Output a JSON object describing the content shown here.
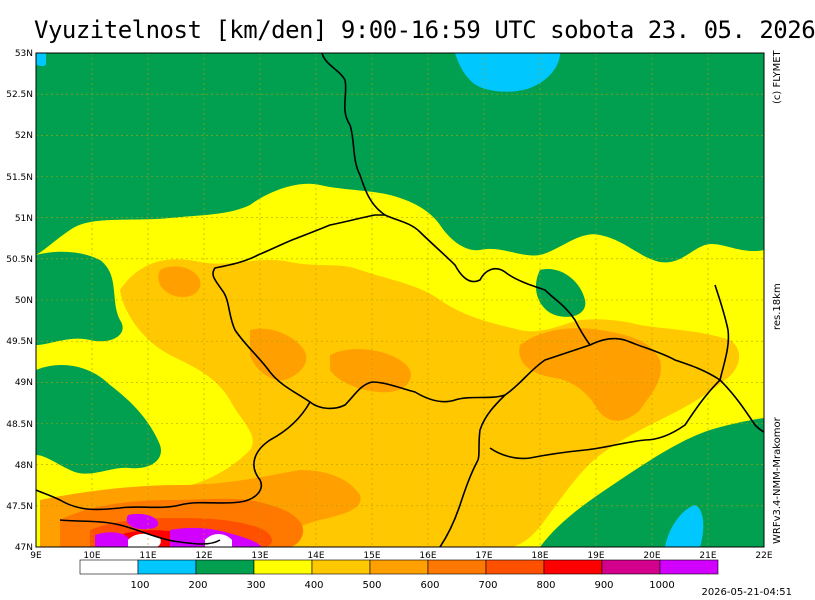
{
  "header": {
    "title": "Vyuzitelnost [km/den] 9:00-16:59 UTC  sobota 23. 05. 2026"
  },
  "side": {
    "copyright": "(c) FLYMET",
    "resolution": "res.18km",
    "model": "WRFv3.4-NMM-Mrakomor"
  },
  "footer": {
    "timestamp": "2026-05-21-04:51"
  },
  "axes": {
    "lat_labels": [
      "53N",
      "52.5N",
      "52N",
      "51.5N",
      "51N",
      "50.5N",
      "50N",
      "49.5N",
      "49N",
      "48.5N",
      "48N",
      "47.5N",
      "47N"
    ],
    "lon_labels": [
      "9E",
      "10E",
      "11E",
      "12E",
      "13E",
      "14E",
      "15E",
      "16E",
      "17E",
      "18E",
      "19E",
      "20E",
      "21E",
      "22E"
    ]
  },
  "legend": {
    "colors": [
      "#ffffff",
      "#00c8ff",
      "#00a050",
      "#ffff00",
      "#ffc800",
      "#ffa000",
      "#ff7800",
      "#ff5000",
      "#ff0000",
      "#d2008c",
      "#d200ff"
    ],
    "labels": [
      "100",
      "200",
      "300",
      "400",
      "500",
      "600",
      "700",
      "800",
      "900",
      "1000"
    ]
  },
  "colors": {
    "green": "#00a050",
    "cyan": "#00c8ff",
    "yellow": "#ffff00",
    "light_orange": "#ffc800",
    "orange": "#ffa000",
    "dark_orange": "#ff7800",
    "red_orange": "#ff5000",
    "red": "#ff0000",
    "magenta": "#d200ff"
  }
}
